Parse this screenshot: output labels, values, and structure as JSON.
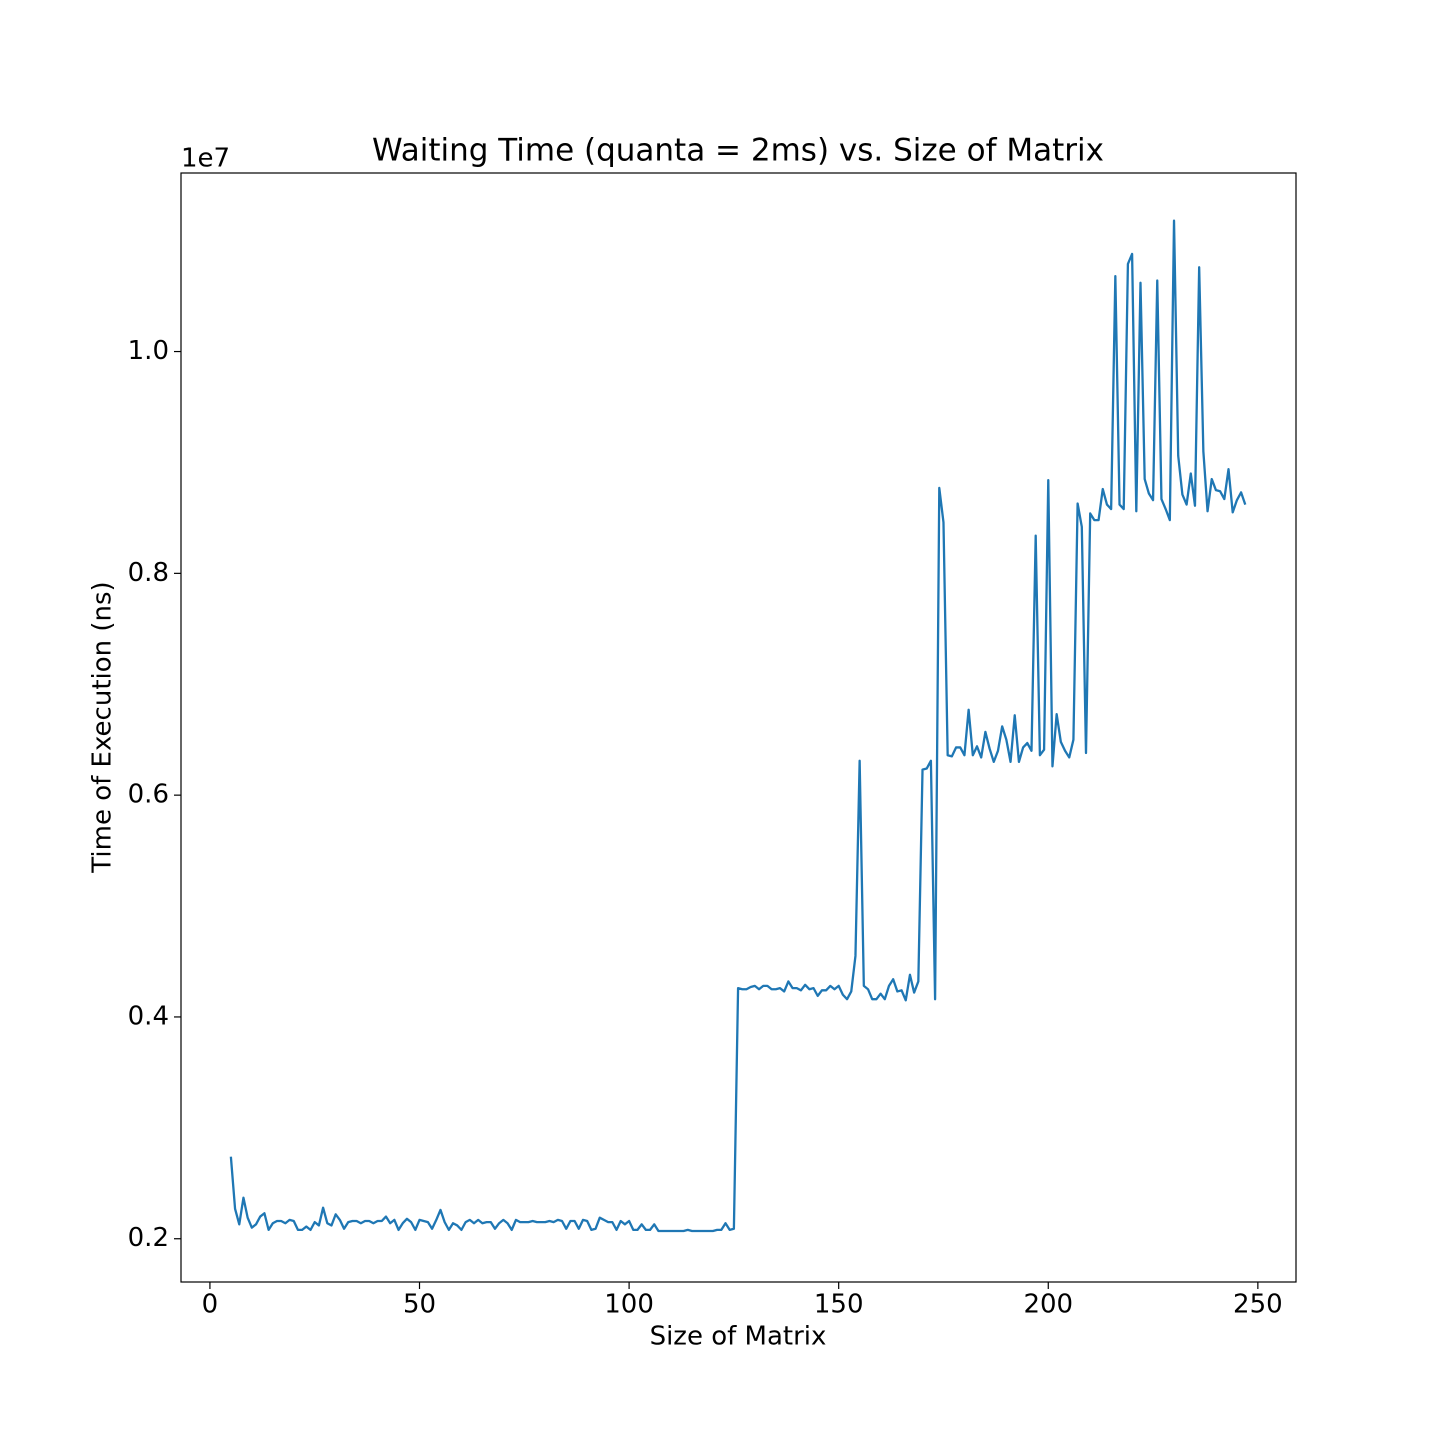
{
  "chart_data": {
    "type": "line",
    "title": "Waiting Time (quanta = 2ms) vs. Size of Matrix",
    "x_label": "Size of Matrix",
    "y_label": "Time of Execution (ns)",
    "y_offset_label": "1e7",
    "xlim": [
      -6.9,
      259.1
    ],
    "ylim": [
      0.161,
      1.161
    ],
    "xticks": [
      0,
      50,
      100,
      150,
      200,
      250
    ],
    "yticks": [
      0.2,
      0.4,
      0.6,
      0.8,
      {
        "value": 1,
        "label": "1.0"
      }
    ],
    "grid": false,
    "x": [
      5,
      6,
      7,
      8,
      9,
      10,
      11,
      12,
      13,
      14,
      15,
      16,
      17,
      18,
      19,
      20,
      21,
      22,
      23,
      24,
      25,
      26,
      27,
      28,
      29,
      30,
      31,
      32,
      33,
      34,
      35,
      36,
      37,
      38,
      39,
      40,
      41,
      42,
      43,
      44,
      45,
      46,
      47,
      48,
      49,
      50,
      51,
      52,
      53,
      54,
      55,
      56,
      57,
      58,
      59,
      60,
      61,
      62,
      63,
      64,
      65,
      66,
      67,
      68,
      69,
      70,
      71,
      72,
      73,
      74,
      75,
      76,
      77,
      78,
      79,
      80,
      81,
      82,
      83,
      84,
      85,
      86,
      87,
      88,
      89,
      90,
      91,
      92,
      93,
      94,
      95,
      96,
      97,
      98,
      99,
      100,
      101,
      102,
      103,
      104,
      105,
      106,
      107,
      108,
      109,
      110,
      111,
      112,
      113,
      114,
      115,
      116,
      117,
      118,
      119,
      120,
      121,
      122,
      123,
      124,
      125,
      126,
      127,
      128,
      129,
      130,
      131,
      132,
      133,
      134,
      135,
      136,
      137,
      138,
      139,
      140,
      141,
      142,
      143,
      144,
      145,
      146,
      147,
      148,
      149,
      150,
      151,
      152,
      153,
      154,
      155,
      156,
      157,
      158,
      159,
      160,
      161,
      162,
      163,
      164,
      165,
      166,
      167,
      168,
      169,
      170,
      171,
      172,
      173,
      174,
      175,
      176,
      177,
      178,
      179,
      180,
      181,
      182,
      183,
      184,
      185,
      186,
      187,
      188,
      189,
      190,
      191,
      192,
      193,
      194,
      195,
      196,
      197,
      198,
      199,
      200,
      201,
      202,
      203,
      204,
      205,
      206,
      207,
      208,
      209,
      210,
      211,
      212,
      213,
      214,
      215,
      216,
      217,
      218,
      219,
      220,
      221,
      222,
      223,
      224,
      225,
      226,
      227,
      228,
      229,
      230,
      231,
      232,
      233,
      234,
      235,
      236,
      237,
      238,
      239,
      240,
      241,
      242,
      243,
      244,
      245,
      246,
      247
    ],
    "series": [
      {
        "name": "Waiting Time",
        "color": "#1f77b4",
        "values": [
          0.274,
          0.227,
          0.213,
          0.237,
          0.219,
          0.21,
          0.213,
          0.22,
          0.223,
          0.208,
          0.214,
          0.216,
          0.216,
          0.214,
          0.217,
          0.216,
          0.208,
          0.208,
          0.211,
          0.208,
          0.215,
          0.212,
          0.228,
          0.214,
          0.212,
          0.222,
          0.217,
          0.209,
          0.215,
          0.216,
          0.216,
          0.214,
          0.216,
          0.216,
          0.214,
          0.216,
          0.216,
          0.22,
          0.214,
          0.217,
          0.208,
          0.214,
          0.218,
          0.215,
          0.208,
          0.217,
          0.216,
          0.215,
          0.209,
          0.217,
          0.226,
          0.215,
          0.208,
          0.214,
          0.212,
          0.208,
          0.215,
          0.217,
          0.214,
          0.217,
          0.214,
          0.215,
          0.215,
          0.209,
          0.214,
          0.217,
          0.214,
          0.208,
          0.217,
          0.215,
          0.215,
          0.215,
          0.216,
          0.215,
          0.215,
          0.215,
          0.216,
          0.215,
          0.217,
          0.216,
          0.209,
          0.216,
          0.216,
          0.209,
          0.217,
          0.216,
          0.208,
          0.209,
          0.219,
          0.217,
          0.215,
          0.215,
          0.208,
          0.216,
          0.213,
          0.216,
          0.208,
          0.208,
          0.213,
          0.208,
          0.208,
          0.213,
          0.207,
          0.207,
          0.207,
          0.207,
          0.207,
          0.207,
          0.207,
          0.208,
          0.207,
          0.207,
          0.207,
          0.207,
          0.207,
          0.207,
          0.208,
          0.208,
          0.214,
          0.208,
          0.209,
          0.426,
          0.425,
          0.425,
          0.427,
          0.428,
          0.425,
          0.428,
          0.428,
          0.425,
          0.425,
          0.426,
          0.423,
          0.432,
          0.426,
          0.426,
          0.424,
          0.429,
          0.425,
          0.426,
          0.419,
          0.424,
          0.424,
          0.428,
          0.425,
          0.428,
          0.42,
          0.416,
          0.423,
          0.455,
          0.631,
          0.428,
          0.425,
          0.416,
          0.416,
          0.421,
          0.416,
          0.428,
          0.434,
          0.423,
          0.424,
          0.415,
          0.438,
          0.422,
          0.432,
          0.623,
          0.624,
          0.631,
          0.416,
          0.877,
          0.846,
          0.636,
          0.635,
          0.643,
          0.643,
          0.636,
          0.677,
          0.636,
          0.644,
          0.634,
          0.657,
          0.642,
          0.63,
          0.64,
          0.662,
          0.65,
          0.63,
          0.672,
          0.63,
          0.643,
          0.647,
          0.64,
          0.834,
          0.636,
          0.641,
          0.884,
          0.626,
          0.673,
          0.648,
          0.64,
          0.634,
          0.65,
          0.863,
          0.842,
          0.638,
          0.854,
          0.848,
          0.848,
          0.876,
          0.862,
          0.858,
          1.068,
          0.862,
          0.858,
          1.079,
          1.088,
          0.856,
          1.062,
          0.885,
          0.872,
          0.866,
          1.064,
          0.867,
          0.858,
          0.848,
          1.118,
          0.906,
          0.871,
          0.862,
          0.89,
          0.861,
          1.076,
          0.91,
          0.856,
          0.885,
          0.875,
          0.874,
          0.867,
          0.894,
          0.855,
          0.866,
          0.873,
          0.862
        ]
      }
    ]
  }
}
